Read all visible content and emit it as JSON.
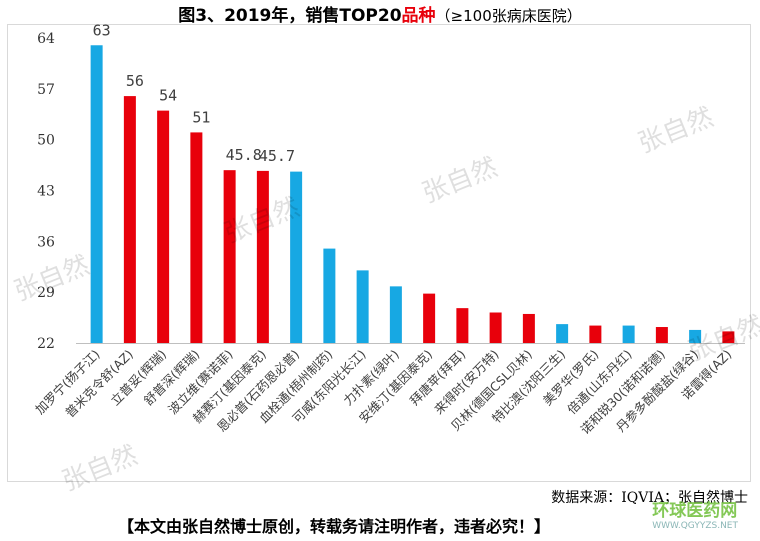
{
  "title": {
    "main": "图3、2019年，销售TOP20",
    "highlight": "品种",
    "sub": "（≥100张病床医院）"
  },
  "chart_data": {
    "type": "bar",
    "categories": [
      "加罗宁(扬子江)",
      "普米克令舒(AZ)",
      "立普妥(辉瑞)",
      "舒普深(辉瑞)",
      "波立维(赛诺菲)",
      "赫赛汀(基因泰克)",
      "恩必普(石药恩必普)",
      "血栓通(梧州制药)",
      "可威(东阳光长江)",
      "力扑素(绿叶)",
      "安维汀(基因泰克)",
      "拜唐苹(拜耳)",
      "来得时(安万特)",
      "贝林(德国CSL贝林)",
      "特比澳(沈阳三生)",
      "美罗华(罗氏)",
      "倍通(山东丹红)",
      "诺和锐30(诺和诺德)",
      "丹参多酚酸盐(绿谷)",
      "诺雷得(AZ)"
    ],
    "values": [
      63,
      56,
      54,
      51,
      45.8,
      45.7,
      45.6,
      35,
      32,
      29.8,
      28.8,
      26.8,
      26.2,
      26,
      24.6,
      24.4,
      24.4,
      24.2,
      23.8,
      23.6
    ],
    "colors": [
      "blue",
      "red",
      "red",
      "red",
      "red",
      "red",
      "blue",
      "blue",
      "blue",
      "blue",
      "red",
      "red",
      "red",
      "red",
      "blue",
      "red",
      "blue",
      "red",
      "blue",
      "red"
    ],
    "data_labels": [
      "63",
      "56",
      "54",
      "51",
      "45.8",
      "45.7",
      "",
      "",
      "",
      "",
      "",
      "",
      "",
      "",
      "",
      "",
      "",
      "",
      "",
      ""
    ],
    "yticks": [
      22,
      29,
      36,
      43,
      50,
      57,
      64
    ],
    "ylim": [
      22,
      64
    ],
    "grid": false,
    "legend": "none"
  },
  "palette": {
    "blue": "#17a8e3",
    "red": "#e8000b"
  },
  "watermark_text": "张自然",
  "source_text": "数据来源：IQVIA；张自然博士",
  "notice_text": "【本文由张自然博士原创，转载务请注明作者，违者必究！】",
  "site": {
    "name": "环球医药网",
    "url": "WWW.QGYYZS.NET"
  }
}
